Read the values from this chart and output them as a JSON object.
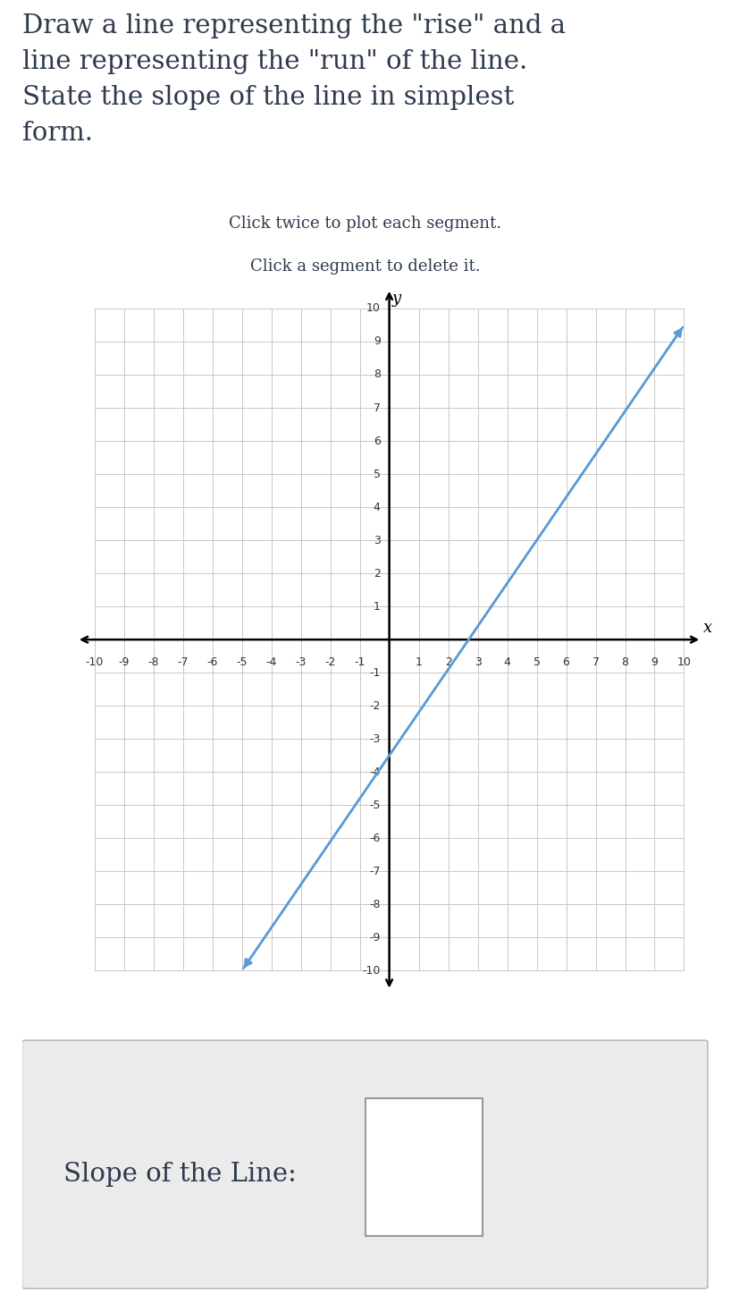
{
  "title_text": "Draw a line representing the \"rise\" and a\nline representing the \"run\" of the line.\nState the slope of the line in simplest\nform.",
  "subtitle_line1": "Click twice to plot each segment.",
  "subtitle_line2": "Click a segment to delete it.",
  "xlabel": "x",
  "ylabel": "y",
  "xlim": [
    -10,
    10
  ],
  "ylim": [
    -10,
    10
  ],
  "xticks": [
    -10,
    -9,
    -8,
    -7,
    -6,
    -5,
    -4,
    -3,
    -2,
    -1,
    1,
    2,
    3,
    4,
    5,
    6,
    7,
    8,
    9,
    10
  ],
  "yticks": [
    -10,
    -9,
    -8,
    -7,
    -6,
    -5,
    -4,
    -3,
    -2,
    -1,
    1,
    2,
    3,
    4,
    5,
    6,
    7,
    8,
    9,
    10
  ],
  "line_color": "#5b9bd5",
  "line_x1": -5.0,
  "line_y1": -10.0,
  "line_x2": 10.0,
  "line_y2": 9.5,
  "slope_label": "Slope of the Line:",
  "axis_color": "#000000",
  "grid_color": "#c8c8c8",
  "tick_label_color": "#333333",
  "background_color": "#ffffff",
  "bottom_panel_color": "#ebebeb",
  "text_color": "#2e3a4e",
  "title_fontsize": 21,
  "subtitle_fontsize": 13,
  "tick_fontsize": 9,
  "axis_label_fontsize": 13,
  "slope_label_fontsize": 21
}
